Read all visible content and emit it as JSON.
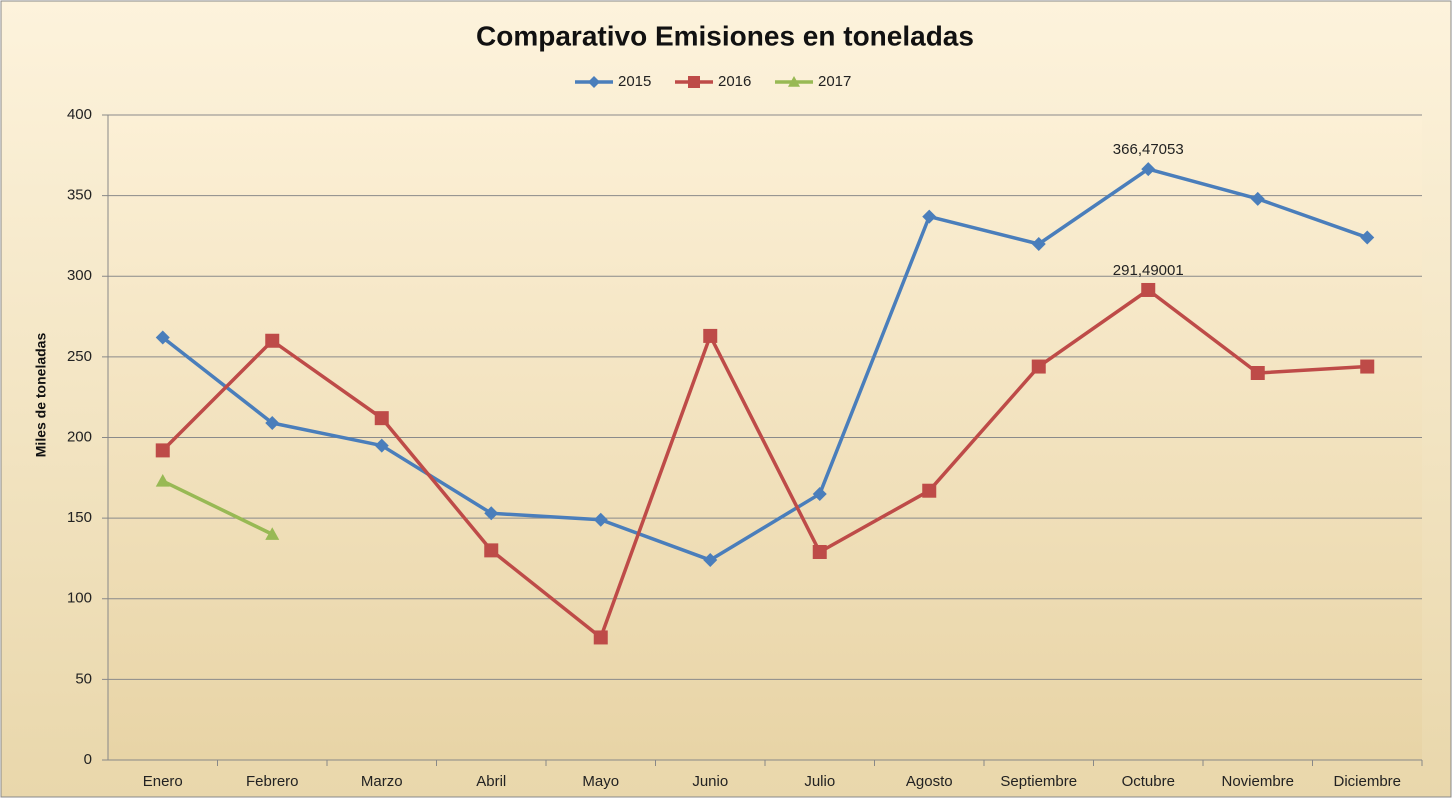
{
  "chart_data": {
    "type": "line",
    "title": "Comparativo Emisiones en toneladas",
    "y_label": "Miles de toneladas",
    "categories": [
      "Enero",
      "Febrero",
      "Marzo",
      "Abril",
      "Mayo",
      "Junio",
      "Julio",
      "Agosto",
      "Septiembre",
      "Octubre",
      "Noviembre",
      "Diciembre"
    ],
    "series": [
      {
        "name": "2015",
        "color": "#4a7ebb",
        "marker": "diamond",
        "values": [
          262,
          209,
          195,
          153,
          149,
          124,
          165,
          337,
          320,
          366.47053,
          348,
          324
        ],
        "value_labels": [
          null,
          null,
          null,
          null,
          null,
          null,
          null,
          null,
          null,
          "366,47053",
          null,
          null
        ]
      },
      {
        "name": "2016",
        "color": "#be4b48",
        "marker": "square",
        "values": [
          192,
          260,
          212,
          130,
          76,
          263,
          129,
          167,
          244,
          291.49001,
          240,
          244
        ],
        "value_labels": [
          null,
          null,
          null,
          null,
          null,
          null,
          null,
          null,
          null,
          "291,49001",
          null,
          null
        ]
      },
      {
        "name": "2017",
        "color": "#98b954",
        "marker": "triangle",
        "values": [
          173,
          140,
          null,
          null,
          null,
          null,
          null,
          null,
          null,
          null,
          null,
          null
        ]
      }
    ],
    "ylim": [
      0,
      400
    ],
    "yticks": [
      0,
      50,
      100,
      150,
      200,
      250,
      300,
      350,
      400
    ],
    "grid": true,
    "legend": "top"
  }
}
